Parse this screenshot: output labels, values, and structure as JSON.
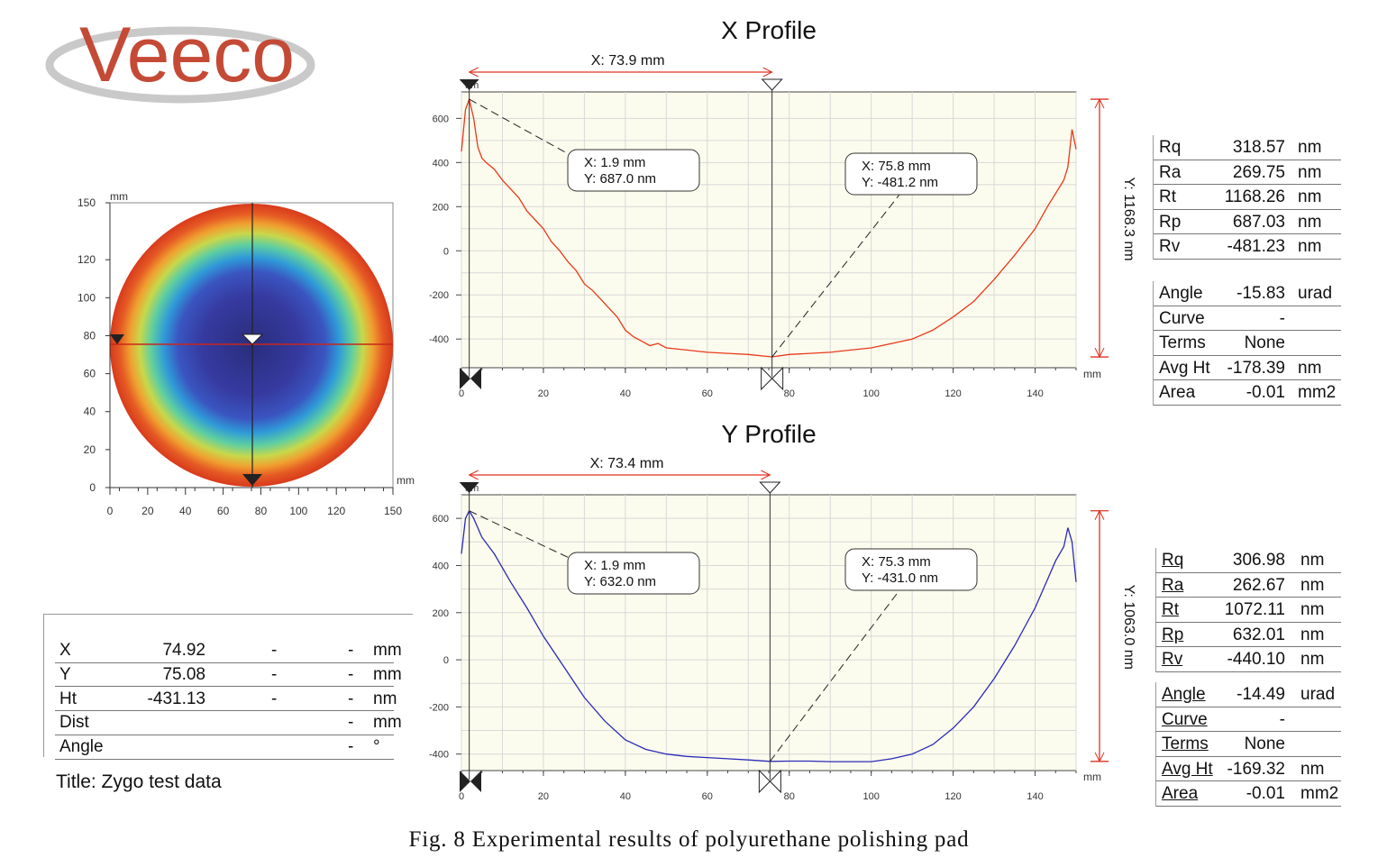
{
  "brand": {
    "logo_text": "Veeco"
  },
  "colors": {
    "x_profile": "#e8391a",
    "y_profile": "#2a2ab8",
    "plot_bg": "#fcfcee",
    "marker_line": "#e03020"
  },
  "map": {
    "unit_x": "mm",
    "unit_y": "mm",
    "x_ticks": [
      "0",
      "20",
      "40",
      "60",
      "80",
      "100",
      "120",
      "150"
    ],
    "y_ticks": [
      "150",
      "120",
      "100",
      "80",
      "60",
      "40",
      "20",
      "0"
    ]
  },
  "position_table": {
    "rows": [
      {
        "label": "X",
        "value": "74.92",
        "c2": "-",
        "c3": "-",
        "unit": "mm"
      },
      {
        "label": "Y",
        "value": "75.08",
        "c2": "-",
        "c3": "-",
        "unit": "mm"
      },
      {
        "label": "Ht",
        "value": "-431.13",
        "c2": "-",
        "c3": "-",
        "unit": "nm"
      },
      {
        "label": "Dist",
        "value": "",
        "c2": "",
        "c3": "-",
        "unit": "mm"
      },
      {
        "label": "Angle",
        "value": "",
        "c2": "",
        "c3": "-",
        "unit": "°"
      }
    ],
    "title_line": "Title: Zygo test data"
  },
  "chart_data": [
    {
      "type": "line",
      "title": "X Profile",
      "xlabel": "mm",
      "ylabel": "nm",
      "xlim": [
        0,
        150
      ],
      "ylim": [
        -530,
        720
      ],
      "x_ticks": [
        0,
        20,
        40,
        60,
        80,
        100,
        120,
        140
      ],
      "y_ticks": [
        600,
        400,
        200,
        0,
        -200,
        -400
      ],
      "span_label": "X: 73.9 mm",
      "height_label": "Y: 1168.3 nm",
      "series": [
        {
          "x": [
            0,
            1,
            1.9,
            3,
            4,
            5,
            6,
            8,
            10,
            12,
            14,
            16,
            18,
            20,
            22,
            24,
            26,
            28,
            30,
            32,
            34,
            36,
            38,
            40,
            42,
            44,
            46,
            48,
            50,
            55,
            60,
            65,
            70,
            75.8,
            80,
            85,
            90,
            95,
            100,
            105,
            110,
            115,
            120,
            125,
            130,
            135,
            140,
            143,
            145,
            147,
            148,
            149,
            150
          ],
          "y": [
            450,
            640,
            687,
            600,
            470,
            420,
            400,
            370,
            320,
            280,
            240,
            180,
            140,
            100,
            40,
            0,
            -50,
            -90,
            -150,
            -180,
            -220,
            -260,
            -300,
            -360,
            -390,
            -410,
            -430,
            -420,
            -440,
            -450,
            -460,
            -465,
            -470,
            -481,
            -470,
            -465,
            -460,
            -450,
            -440,
            -420,
            -400,
            -360,
            -300,
            -230,
            -130,
            -20,
            100,
            200,
            260,
            320,
            380,
            550,
            460
          ]
        }
      ],
      "annotations": [
        {
          "text_x": "X: 1.9 mm",
          "text_y": "Y: 687.0 nm",
          "x": 1.9,
          "y": 687.0
        },
        {
          "text_x": "X: 75.8 mm",
          "text_y": "Y: -481.2 nm",
          "x": 75.8,
          "y": -481.2
        }
      ],
      "stats_a": [
        {
          "label": "Rq",
          "value": "318.57",
          "unit": "nm"
        },
        {
          "label": "Ra",
          "value": "269.75",
          "unit": "nm"
        },
        {
          "label": "Rt",
          "value": "1168.26",
          "unit": "nm"
        },
        {
          "label": "Rp",
          "value": "687.03",
          "unit": "nm"
        },
        {
          "label": "Rv",
          "value": "-481.23",
          "unit": "nm"
        }
      ],
      "stats_b": [
        {
          "label": "Angle",
          "value": "-15.83",
          "unit": "urad"
        },
        {
          "label": "Curve",
          "value": "-",
          "unit": ""
        },
        {
          "label": "Terms",
          "value": "None",
          "unit": ""
        },
        {
          "label": "Avg Ht",
          "value": "-178.39",
          "unit": "nm"
        },
        {
          "label": "Area",
          "value": "-0.01",
          "unit": "mm2"
        }
      ]
    },
    {
      "type": "line",
      "title": "Y Profile",
      "xlabel": "mm",
      "ylabel": "nm",
      "xlim": [
        0,
        150
      ],
      "ylim": [
        -470,
        700
      ],
      "x_ticks": [
        0,
        20,
        40,
        60,
        80,
        100,
        120,
        140
      ],
      "y_ticks": [
        600,
        400,
        200,
        0,
        -200,
        -400
      ],
      "span_label": "X: 73.4 mm",
      "height_label": "Y: 1063.0 nm",
      "series": [
        {
          "x": [
            0,
            1,
            1.9,
            3,
            5,
            8,
            12,
            16,
            20,
            25,
            30,
            35,
            40,
            45,
            50,
            55,
            60,
            65,
            70,
            75.3,
            80,
            85,
            90,
            95,
            100,
            105,
            110,
            115,
            120,
            125,
            130,
            135,
            140,
            143,
            145,
            147,
            148,
            149,
            150
          ],
          "y": [
            450,
            600,
            632,
            600,
            520,
            450,
            330,
            220,
            100,
            -30,
            -160,
            -260,
            -340,
            -380,
            -400,
            -410,
            -415,
            -420,
            -425,
            -431,
            -430,
            -430,
            -432,
            -432,
            -432,
            -420,
            -400,
            -360,
            -290,
            -200,
            -80,
            60,
            220,
            340,
            420,
            480,
            560,
            500,
            330
          ]
        }
      ],
      "annotations": [
        {
          "text_x": "X: 1.9 mm",
          "text_y": "Y: 632.0 nm",
          "x": 1.9,
          "y": 632.0
        },
        {
          "text_x": "X: 75.3 mm",
          "text_y": "Y: -431.0 nm",
          "x": 75.3,
          "y": -431.0
        }
      ],
      "stats_a": [
        {
          "label": "Rq",
          "value": "306.98",
          "unit": "nm"
        },
        {
          "label": "Ra",
          "value": "262.67",
          "unit": "nm"
        },
        {
          "label": "Rt",
          "value": "1072.11",
          "unit": "nm"
        },
        {
          "label": "Rp",
          "value": "632.01",
          "unit": "nm"
        },
        {
          "label": "Rv",
          "value": "-440.10",
          "unit": "nm"
        }
      ],
      "stats_b": [
        {
          "label": "Angle",
          "value": "-14.49",
          "unit": "urad"
        },
        {
          "label": "Curve",
          "value": "-",
          "unit": ""
        },
        {
          "label": "Terms",
          "value": "None",
          "unit": ""
        },
        {
          "label": "Avg Ht",
          "value": "-169.32",
          "unit": "nm"
        },
        {
          "label": "Area",
          "value": "-0.01",
          "unit": "mm2"
        }
      ]
    }
  ],
  "caption": "Fig. 8   Experimental results of polyurethane polishing pad"
}
